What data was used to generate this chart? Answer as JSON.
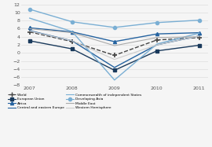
{
  "years": [
    2007,
    2008,
    2009,
    2010,
    2011
  ],
  "series": {
    "World": [
      5.2,
      2.8,
      -0.6,
      3.2,
      3.8
    ],
    "European Union": [
      3.0,
      1.0,
      -4.3,
      0.5,
      1.9
    ],
    "Africa": [
      6.2,
      5.2,
      2.8,
      4.7,
      5.0
    ],
    "Central and eastern Europe": [
      5.5,
      3.0,
      -3.6,
      2.0,
      4.2
    ],
    "Commonwealth of independent States": [
      8.6,
      5.3,
      -6.7,
      2.2,
      4.9
    ],
    "Developing Asia": [
      10.8,
      7.7,
      6.3,
      7.5,
      8.1
    ],
    "Middle East": [
      6.0,
      5.0,
      1.8,
      3.8,
      4.0
    ],
    "Western Hemisphere": [
      5.4,
      3.0,
      -1.6,
      2.0,
      4.2
    ]
  },
  "colors": {
    "World": "#444444",
    "European Union": "#1a3a5c",
    "Africa": "#2563a0",
    "Central and eastern Europe": "#2563a0",
    "Commonwealth of independent States": "#7aafd4",
    "Developing Asia": "#7aafd4",
    "Middle East": "#aaaaaa",
    "Western Hemisphere": "#cccccc"
  },
  "markers": {
    "World": "+",
    "European Union": "s",
    "Africa": "^",
    "Central and eastern Europe": "none",
    "Commonwealth of independent States": "none",
    "Developing Asia": "o",
    "Middle East": "none",
    "Western Hemisphere": "none"
  },
  "linestyles": {
    "World": "--",
    "European Union": "-",
    "Africa": "-",
    "Central and eastern Europe": "-",
    "Commonwealth of independent States": "-",
    "Developing Asia": "-",
    "Middle East": "-",
    "Western Hemisphere": "-"
  },
  "linewidths": {
    "World": 1.0,
    "European Union": 1.0,
    "Africa": 1.0,
    "Central and eastern Europe": 1.0,
    "Commonwealth of independent States": 1.0,
    "Developing Asia": 1.0,
    "Middle East": 0.8,
    "Western Hemisphere": 0.8
  },
  "ylim": [
    -8.0,
    12.0
  ],
  "yticks": [
    -8.0,
    -6.0,
    -4.0,
    -2.0,
    0.0,
    2.0,
    4.0,
    6.0,
    8.0,
    10.0,
    12.0
  ],
  "background_color": "#f5f5f5",
  "grid_color": "#dddddd",
  "legend_items": [
    [
      "World",
      "--",
      "+",
      "#444444"
    ],
    [
      "European Union",
      "-",
      "s",
      "#1a3a5c"
    ],
    [
      "Africa",
      "-",
      "^",
      "#2563a0"
    ],
    [
      "Central and eastern Europe",
      "-",
      "none",
      "#2563a0"
    ],
    [
      "Commonwealth of independent States",
      "-",
      "none",
      "#7aafd4"
    ],
    [
      "Developing Asia",
      "-",
      "o",
      "#7aafd4"
    ],
    [
      "Middle East",
      "-",
      "none",
      "#aaaaaa"
    ],
    [
      "Western Hemisphere",
      "-",
      "none",
      "#cccccc"
    ]
  ]
}
